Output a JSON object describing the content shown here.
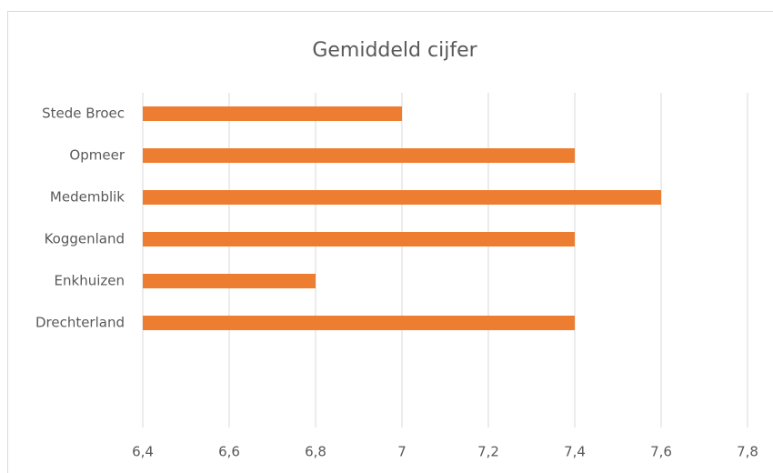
{
  "chart_data": {
    "type": "hbar",
    "title": "Gemiddeld cijfer",
    "categories": [
      "Stede Broec",
      "Opmeer",
      "Medemblik",
      "Koggenland",
      "Enkhuizen",
      "Drechterland",
      null,
      null
    ],
    "values": [
      7.0,
      7.4,
      7.6,
      7.4,
      6.8,
      7.4,
      null,
      null
    ],
    "color": "#ed7d31",
    "xlim": [
      6.4,
      7.8
    ],
    "xticks": [
      {
        "value": 6.4,
        "label": "6,4"
      },
      {
        "value": 6.6,
        "label": "6,6"
      },
      {
        "value": 6.8,
        "label": "6,8"
      },
      7,
      {
        "value": 7.2,
        "label": "7,2"
      },
      {
        "value": 7.4,
        "label": "7,4"
      },
      {
        "value": 7.6,
        "label": "7,6"
      },
      {
        "value": 7.8,
        "label": "7,8"
      }
    ],
    "grid": true
  }
}
